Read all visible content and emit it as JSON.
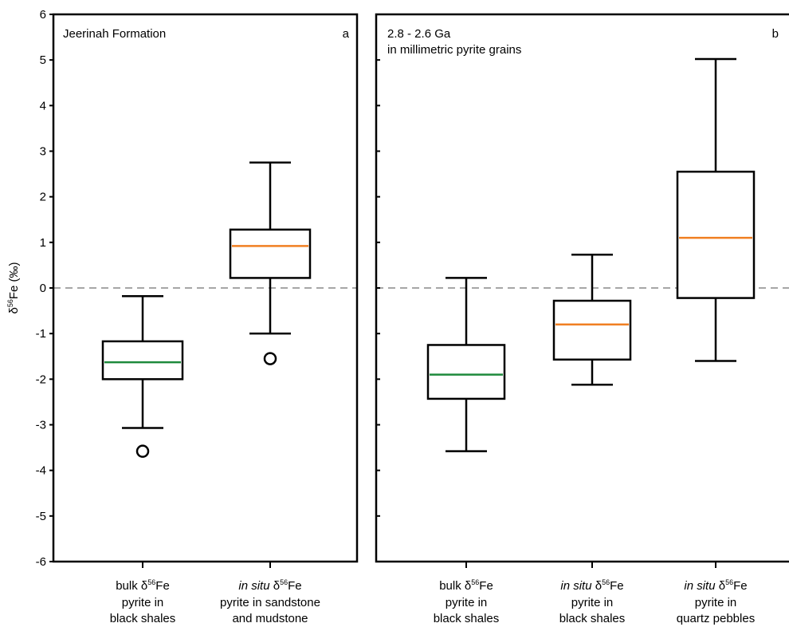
{
  "chart_data": [
    {
      "type": "box",
      "panel_label": "a",
      "title_lines": [
        "Jeerinah Formation"
      ],
      "ylabel": "δ56Fe (‰)",
      "ylim": [
        -6,
        6
      ],
      "yticks": [
        6,
        5,
        4,
        3,
        2,
        1,
        0,
        -1,
        -2,
        -3,
        -4,
        -5,
        -6
      ],
      "reference_line": {
        "y": 0,
        "style": "dashed",
        "color": "#a6a6a6"
      },
      "categories": [
        {
          "prefix": "bulk",
          "prefix_italic": false,
          "symbol": "δ",
          "sup": "56",
          "suffix": "Fe",
          "lines": [
            "pyrite in",
            "black shales"
          ]
        },
        {
          "prefix": "in situ",
          "prefix_italic": true,
          "symbol": " δ",
          "sup": "56",
          "suffix": "Fe",
          "lines": [
            "pyrite in sandstone",
            "and mudstone"
          ]
        }
      ],
      "boxes": [
        {
          "whisker_low": -3.07,
          "q1": -2.0,
          "median": -1.63,
          "q3": -1.17,
          "whisker_high": -0.18,
          "outliers": [
            -3.58
          ],
          "median_color": "#1e8a3c"
        },
        {
          "whisker_low": -1.0,
          "q1": 0.22,
          "median": 0.92,
          "q3": 1.28,
          "whisker_high": 2.75,
          "outliers": [
            -1.55
          ],
          "median_color": "#f07f22"
        }
      ]
    },
    {
      "type": "box",
      "panel_label": "b",
      "title_lines": [
        "2.8 - 2.6 Ga",
        "in millimetric pyrite grains"
      ],
      "ylim": [
        -6,
        6
      ],
      "reference_line": {
        "y": 0,
        "style": "dashed",
        "color": "#a6a6a6"
      },
      "categories": [
        {
          "prefix": "bulk",
          "prefix_italic": false,
          "symbol": "δ",
          "sup": "56",
          "suffix": "Fe",
          "lines": [
            "pyrite in",
            "black shales"
          ]
        },
        {
          "prefix": "in situ",
          "prefix_italic": true,
          "symbol": " δ",
          "sup": "56",
          "suffix": "Fe",
          "lines": [
            "pyrite in",
            "black shales"
          ]
        },
        {
          "prefix": "in situ",
          "prefix_italic": true,
          "symbol": " δ",
          "sup": "56",
          "suffix": "Fe",
          "lines": [
            "pyrite in",
            "quartz pebbles"
          ]
        }
      ],
      "boxes": [
        {
          "whisker_low": -3.58,
          "q1": -2.43,
          "median": -1.9,
          "q3": -1.25,
          "whisker_high": 0.22,
          "outliers": [],
          "median_color": "#1e8a3c"
        },
        {
          "whisker_low": -2.12,
          "q1": -1.57,
          "median": -0.8,
          "q3": -0.28,
          "whisker_high": 0.73,
          "outliers": [],
          "median_color": "#f07f22"
        },
        {
          "whisker_low": -1.6,
          "q1": -0.22,
          "median": 1.1,
          "q3": 2.55,
          "whisker_high": 5.02,
          "outliers": [],
          "median_color": "#f07f22"
        }
      ]
    }
  ]
}
